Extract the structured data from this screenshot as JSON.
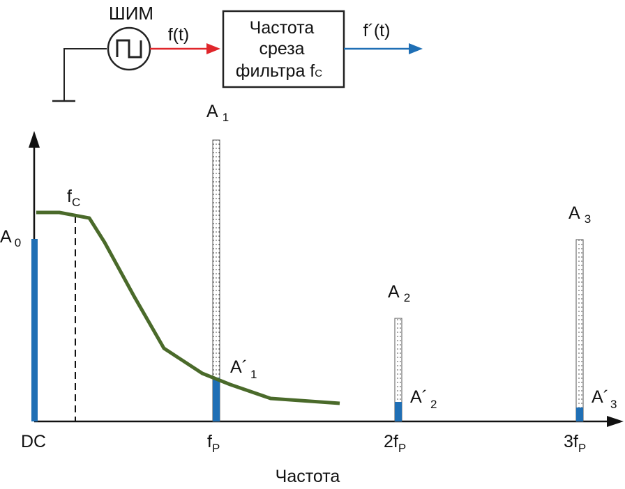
{
  "schematic": {
    "source_label": "ШИМ",
    "signal_in_label": "f(t)",
    "filter_block_line1": "Частота",
    "filter_block_line2": "среза",
    "filter_block_line3": "фильтра f",
    "filter_block_sub": "C",
    "signal_out_label": "f´(t)",
    "colors": {
      "input_arrow": "#e0262b",
      "output_arrow": "#1f6fb5"
    }
  },
  "spectrum": {
    "axis_label": "Частота",
    "cutoff": {
      "base": "f",
      "sub": "C"
    },
    "ticks": [
      {
        "base": "DC",
        "sub": ""
      },
      {
        "base": "f",
        "sub": "P"
      },
      {
        "base": "2f",
        "sub": "P"
      },
      {
        "base": "3f",
        "sub": "P"
      }
    ],
    "harmonics": [
      {
        "base": "A",
        "sub": "0"
      },
      {
        "base": "A",
        "sub": "1"
      },
      {
        "base": "A",
        "sub": "2"
      },
      {
        "base": "A",
        "sub": "3"
      }
    ],
    "filtered": [
      {
        "base": "A´",
        "sub": "1"
      },
      {
        "base": "A´",
        "sub": "2"
      },
      {
        "base": "A´",
        "sub": "3"
      }
    ],
    "colors": {
      "filter_curve": "#4a6a2a",
      "filtered_bar": "#1f6fb5"
    }
  }
}
